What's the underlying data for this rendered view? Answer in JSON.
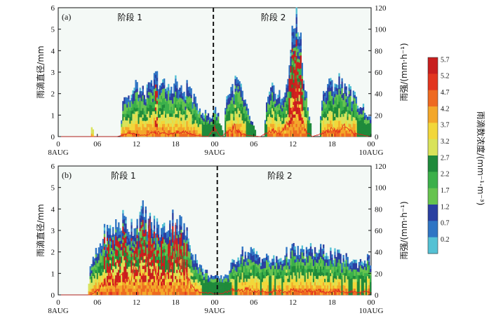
{
  "chart_data": [
    {
      "type": "heatmap",
      "panel_label": "(a)",
      "ylabel": "雨滴直径/mm",
      "y2label": "雨强/(mm·h⁻¹)",
      "ylim": [
        0,
        6
      ],
      "y2lim": [
        0,
        120
      ],
      "yticks": [
        "0",
        "1",
        "2",
        "3",
        "4",
        "5",
        "6"
      ],
      "y2ticks": [
        "0",
        "20",
        "40",
        "60",
        "80",
        "100",
        "120"
      ],
      "xticks": [
        {
          "t": 0,
          "label": "0"
        },
        {
          "t": 6,
          "label": "06"
        },
        {
          "t": 12,
          "label": "12"
        },
        {
          "t": 18,
          "label": "18"
        },
        {
          "t": 24,
          "label": "00"
        },
        {
          "t": 30,
          "label": "06"
        },
        {
          "t": 36,
          "label": "12"
        },
        {
          "t": 42,
          "label": "18"
        },
        {
          "t": 48,
          "label": "00"
        }
      ],
      "date_labels": [
        {
          "t": 0,
          "label": "8AUG"
        },
        {
          "t": 24,
          "label": "9AUG"
        },
        {
          "t": 48,
          "label": "10AUG"
        }
      ],
      "divider_hours": 23.8,
      "stage_labels": [
        {
          "t": 11,
          "label": "阶段 1"
        },
        {
          "t": 33,
          "label": "阶段 2"
        }
      ],
      "envelope": [
        [
          4.8,
          0.0
        ],
        [
          5.2,
          0.6
        ],
        [
          5.6,
          0.0
        ],
        [
          9.5,
          0.0
        ],
        [
          10,
          2.0
        ],
        [
          11,
          1.8
        ],
        [
          12,
          2.4
        ],
        [
          13,
          2.0
        ],
        [
          14,
          2.2
        ],
        [
          15,
          2.8
        ],
        [
          16,
          2.4
        ],
        [
          17,
          2.2
        ],
        [
          18,
          2.6
        ],
        [
          19,
          2.0
        ],
        [
          20,
          2.4
        ],
        [
          21,
          1.6
        ],
        [
          22,
          1.2
        ],
        [
          23,
          1.0
        ],
        [
          23.5,
          0.8
        ],
        [
          24,
          1.5
        ],
        [
          24.5,
          1.0
        ],
        [
          25.5,
          0.0
        ],
        [
          25.6,
          1.5
        ],
        [
          26,
          2.0
        ],
        [
          27,
          2.4
        ],
        [
          27.5,
          2.6
        ],
        [
          28,
          2.3
        ],
        [
          28.5,
          1.6
        ],
        [
          29,
          1.3
        ],
        [
          29.5,
          0.8
        ],
        [
          30,
          0.5
        ],
        [
          30.5,
          0.0
        ],
        [
          31.5,
          0.0
        ],
        [
          32,
          1.5
        ],
        [
          32.5,
          2.0
        ],
        [
          33,
          2.2
        ],
        [
          34,
          2.0
        ],
        [
          34.5,
          1.5
        ],
        [
          35,
          2.5
        ],
        [
          35.5,
          3.6
        ],
        [
          36,
          4.6
        ],
        [
          36.5,
          5.8
        ],
        [
          37,
          5.2
        ],
        [
          37.5,
          3.0
        ],
        [
          38,
          2.0
        ],
        [
          38.5,
          1.0
        ],
        [
          39,
          0.0
        ],
        [
          40,
          0.0
        ],
        [
          40.5,
          1.8
        ],
        [
          41,
          2.2
        ],
        [
          42,
          2.5
        ],
        [
          43,
          2.6
        ],
        [
          44,
          2.4
        ],
        [
          45,
          2.0
        ],
        [
          46,
          1.6
        ],
        [
          47,
          1.3
        ],
        [
          47.8,
          0.8
        ]
      ],
      "rain_rate": [
        [
          0,
          0
        ],
        [
          9,
          0
        ],
        [
          11,
          3
        ],
        [
          13,
          1
        ],
        [
          15,
          4
        ],
        [
          17,
          2
        ],
        [
          19,
          5
        ],
        [
          21,
          1
        ],
        [
          23,
          0
        ],
        [
          24,
          8
        ],
        [
          24.5,
          3
        ],
        [
          25,
          0
        ],
        [
          26,
          4
        ],
        [
          27,
          9
        ],
        [
          28,
          3
        ],
        [
          29,
          1
        ],
        [
          31,
          0
        ],
        [
          32,
          3
        ],
        [
          33,
          6
        ],
        [
          34,
          2
        ],
        [
          35,
          10
        ],
        [
          36,
          25
        ],
        [
          36.5,
          55
        ],
        [
          37,
          20
        ],
        [
          38,
          5
        ],
        [
          39,
          0
        ],
        [
          41,
          4
        ],
        [
          42,
          8
        ],
        [
          43,
          5
        ],
        [
          44,
          9
        ],
        [
          45,
          4
        ],
        [
          47,
          1
        ],
        [
          48,
          0
        ]
      ]
    },
    {
      "type": "heatmap",
      "panel_label": "(b)",
      "ylabel": "雨滴直径/mm",
      "y2label": "雨强/(mm·h⁻¹)",
      "ylim": [
        0,
        6
      ],
      "y2lim": [
        0,
        120
      ],
      "yticks": [
        "0",
        "1",
        "2",
        "3",
        "4",
        "5",
        "6"
      ],
      "y2ticks": [
        "0",
        "20",
        "40",
        "60",
        "80",
        "100",
        "120"
      ],
      "xticks": [
        {
          "t": 0,
          "label": "0"
        },
        {
          "t": 6,
          "label": "06"
        },
        {
          "t": 12,
          "label": "12"
        },
        {
          "t": 18,
          "label": "18"
        },
        {
          "t": 24,
          "label": "00"
        },
        {
          "t": 30,
          "label": "06"
        },
        {
          "t": 36,
          "label": "12"
        },
        {
          "t": 42,
          "label": "18"
        },
        {
          "t": 48,
          "label": "00"
        }
      ],
      "date_labels": [
        {
          "t": 0,
          "label": "8AUG"
        },
        {
          "t": 24,
          "label": "9AUG"
        },
        {
          "t": 48,
          "label": "10AUG"
        }
      ],
      "divider_hours": 24.4,
      "stage_labels": [
        {
          "t": 10,
          "label": "阶段 1"
        },
        {
          "t": 34,
          "label": "阶段 2"
        }
      ],
      "envelope": [
        [
          2.5,
          0.0
        ],
        [
          2.6,
          0.4
        ],
        [
          2.8,
          0.0
        ],
        [
          4.5,
          0.0
        ],
        [
          5,
          1.4
        ],
        [
          6,
          2.0
        ],
        [
          7,
          2.8
        ],
        [
          8,
          3.0
        ],
        [
          9,
          3.2
        ],
        [
          10,
          3.5
        ],
        [
          11,
          3.2
        ],
        [
          12,
          3.4
        ],
        [
          13,
          3.8
        ],
        [
          14,
          3.4
        ],
        [
          15,
          3.2
        ],
        [
          16,
          3.0
        ],
        [
          17,
          3.4
        ],
        [
          18,
          3.6
        ],
        [
          19,
          3.2
        ],
        [
          20,
          2.6
        ],
        [
          21,
          1.8
        ],
        [
          22,
          1.2
        ],
        [
          23,
          1.0
        ],
        [
          24,
          0.8
        ],
        [
          25,
          0.8
        ],
        [
          26,
          1.0
        ],
        [
          27,
          1.6
        ],
        [
          28,
          2.0
        ],
        [
          29,
          1.9
        ],
        [
          30,
          2.0
        ],
        [
          31,
          1.8
        ],
        [
          32,
          1.7
        ],
        [
          33,
          1.6
        ],
        [
          34,
          1.7
        ],
        [
          35,
          1.9
        ],
        [
          36,
          2.1
        ],
        [
          37,
          2.0
        ],
        [
          38,
          2.0
        ],
        [
          39,
          2.1
        ],
        [
          40,
          2.0
        ],
        [
          41,
          2.1
        ],
        [
          42,
          1.9
        ],
        [
          43,
          1.8
        ],
        [
          44,
          1.7
        ],
        [
          45,
          1.6
        ],
        [
          46,
          1.5
        ],
        [
          47,
          1.7
        ],
        [
          48,
          1.6
        ]
      ],
      "rain_rate": [
        [
          0,
          0
        ],
        [
          5,
          0
        ],
        [
          6,
          4
        ],
        [
          7,
          10
        ],
        [
          8,
          18
        ],
        [
          9,
          8
        ],
        [
          10,
          20
        ],
        [
          11,
          12
        ],
        [
          12,
          25
        ],
        [
          13,
          15
        ],
        [
          14,
          55
        ],
        [
          15,
          20
        ],
        [
          16,
          10
        ],
        [
          17,
          30
        ],
        [
          18,
          50
        ],
        [
          19,
          28
        ],
        [
          20,
          12
        ],
        [
          21,
          5
        ],
        [
          22,
          2
        ],
        [
          23,
          2
        ],
        [
          24,
          1
        ],
        [
          25,
          1
        ],
        [
          26,
          3
        ],
        [
          27,
          5
        ],
        [
          28,
          4
        ],
        [
          29,
          6
        ],
        [
          30,
          3
        ],
        [
          31,
          4
        ],
        [
          32,
          2
        ],
        [
          33,
          3
        ],
        [
          34,
          4
        ],
        [
          35,
          2
        ],
        [
          36,
          5
        ],
        [
          37,
          3
        ],
        [
          38,
          4
        ],
        [
          39,
          3
        ],
        [
          40,
          4
        ],
        [
          41,
          2
        ],
        [
          42,
          3
        ],
        [
          43,
          4
        ],
        [
          44,
          2
        ],
        [
          45,
          3
        ],
        [
          46,
          2
        ],
        [
          47,
          3
        ],
        [
          48,
          2
        ]
      ]
    }
  ],
  "colorbar": {
    "label": "雨滴数浓度/(mm⁻¹·m⁻³)",
    "ticks": [
      "5.7",
      "5.2",
      "4.7",
      "4.2",
      "3.7",
      "3.2",
      "2.7",
      "2.2",
      "1.7",
      "1.2",
      "0.7",
      "0.2"
    ],
    "colors": [
      "#c81e1e",
      "#e2351f",
      "#ee6a21",
      "#f3a72a",
      "#f2d73a",
      "#d9e35a",
      "#1f8a3b",
      "#3bb04a",
      "#66c34f",
      "#2a3fa1",
      "#2f75c4",
      "#54c1d4"
    ]
  }
}
